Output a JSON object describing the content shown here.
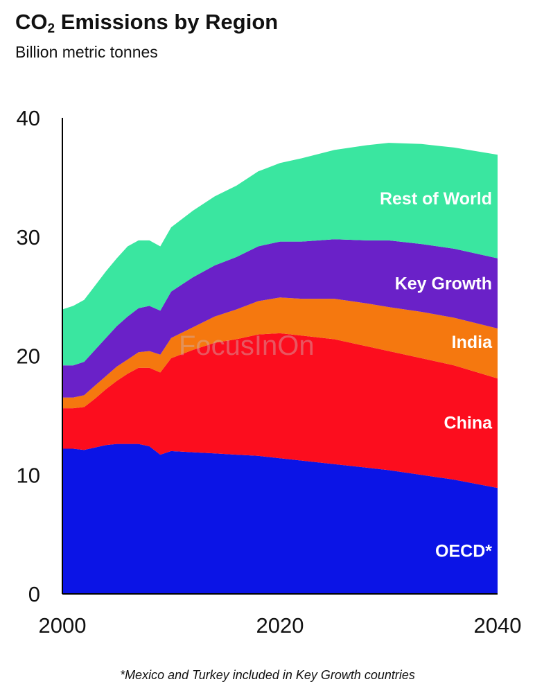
{
  "chart_data": {
    "type": "area",
    "stacked": true,
    "title_main": "CO",
    "title_sub": "2",
    "title_rest": " Emissions by Region",
    "subtitle": "Billion metric tonnes",
    "footnote": "*Mexico and Turkey included in Key Growth countries",
    "watermark": "FocusInOn",
    "ylim": [
      0,
      40
    ],
    "xlim": [
      2000,
      2040
    ],
    "y_ticks": [
      "0",
      "10",
      "20",
      "30",
      "40"
    ],
    "x_ticks": [
      "2000",
      "2020",
      "2040"
    ],
    "x": [
      2000,
      2001,
      2002,
      2003,
      2004,
      2005,
      2006,
      2007,
      2008,
      2009,
      2010,
      2012,
      2014,
      2016,
      2018,
      2020,
      2022,
      2025,
      2028,
      2030,
      2033,
      2036,
      2040
    ],
    "series": [
      {
        "name": "OECD*",
        "color": "#0b14e6",
        "values": [
          12.2,
          12.2,
          12.1,
          12.3,
          12.5,
          12.6,
          12.6,
          12.6,
          12.4,
          11.7,
          12.0,
          11.9,
          11.8,
          11.7,
          11.6,
          11.4,
          11.2,
          10.9,
          10.6,
          10.4,
          10.0,
          9.6,
          8.9
        ]
      },
      {
        "name": "China",
        "color": "#fc0d1e",
        "values": [
          3.4,
          3.4,
          3.6,
          4.1,
          4.7,
          5.3,
          5.9,
          6.4,
          6.6,
          6.9,
          7.8,
          8.6,
          9.3,
          9.7,
          10.2,
          10.5,
          10.5,
          10.5,
          10.2,
          10.0,
          9.8,
          9.6,
          9.2
        ]
      },
      {
        "name": "India",
        "color": "#f5780f",
        "values": [
          0.9,
          0.9,
          1.0,
          1.1,
          1.1,
          1.2,
          1.2,
          1.3,
          1.4,
          1.5,
          1.7,
          1.9,
          2.2,
          2.5,
          2.8,
          3.0,
          3.1,
          3.4,
          3.6,
          3.7,
          3.9,
          4.0,
          4.2
        ]
      },
      {
        "name": "Key Growth",
        "color": "#6a21c8",
        "values": [
          2.7,
          2.7,
          2.8,
          3.0,
          3.2,
          3.4,
          3.6,
          3.7,
          3.8,
          3.7,
          3.9,
          4.2,
          4.3,
          4.4,
          4.6,
          4.7,
          4.8,
          5.0,
          5.3,
          5.6,
          5.7,
          5.8,
          5.9
        ]
      },
      {
        "name": "Rest of World",
        "color": "#3ae6a0",
        "values": [
          4.7,
          5.0,
          5.2,
          5.4,
          5.6,
          5.7,
          5.9,
          5.7,
          5.5,
          5.4,
          5.4,
          5.6,
          5.8,
          6.0,
          6.3,
          6.6,
          7.0,
          7.5,
          8.0,
          8.2,
          8.4,
          8.5,
          8.7
        ]
      }
    ]
  }
}
